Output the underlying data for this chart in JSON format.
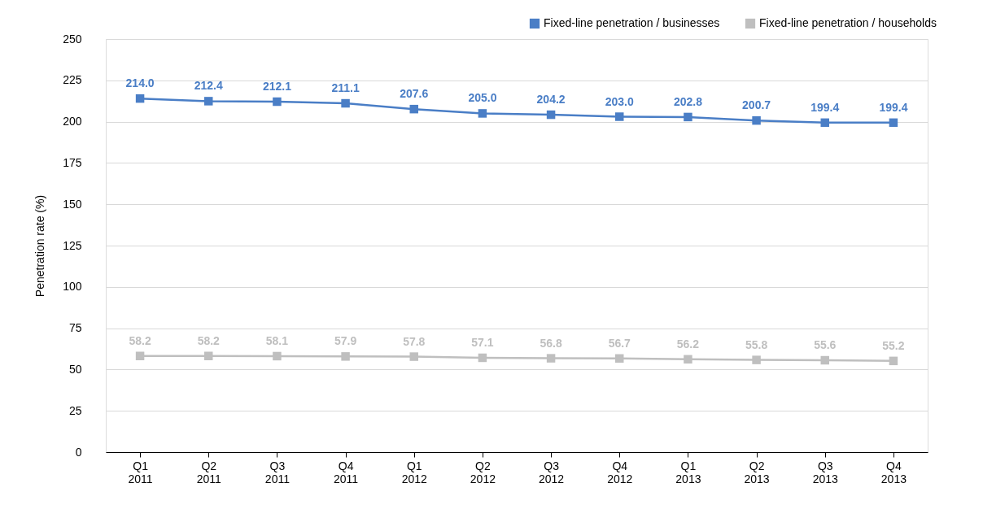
{
  "chart_data": {
    "type": "line",
    "ylabel": "Penetration rate (%)",
    "categories": [
      "Q1 2011",
      "Q2 2011",
      "Q3 2011",
      "Q4 2011",
      "Q1 2012",
      "Q2 2012",
      "Q3 2012",
      "Q4 2012",
      "Q1 2013",
      "Q2 2013",
      "Q3 2013",
      "Q4 2013"
    ],
    "series": [
      {
        "name": "Fixed-line penetration / businesses",
        "color": "#4a7ec6",
        "values": [
          214.0,
          212.4,
          212.1,
          211.1,
          207.6,
          205.0,
          204.2,
          203.0,
          202.8,
          200.7,
          199.4,
          199.4
        ],
        "value_labels": [
          "214.0",
          "212.4",
          "212.1",
          "211.1",
          "207.6",
          "205.0",
          "204.2",
          "203.0",
          "202.8",
          "200.7",
          "199.4",
          "199.4"
        ]
      },
      {
        "name": "Fixed-line penetration / households",
        "color": "#bfbfbf",
        "values": [
          58.2,
          58.2,
          58.1,
          57.9,
          57.8,
          57.1,
          56.8,
          56.7,
          56.2,
          55.8,
          55.6,
          55.2
        ],
        "value_labels": [
          "58.2",
          "58.2",
          "58.1",
          "57.9",
          "57.8",
          "57.1",
          "56.8",
          "56.7",
          "56.2",
          "55.8",
          "55.6",
          "55.2"
        ]
      }
    ],
    "ylim": [
      0,
      250
    ],
    "yticks": [
      0,
      25,
      50,
      75,
      100,
      125,
      150,
      175,
      200,
      225,
      250
    ],
    "grid": "y",
    "legend": "top right",
    "marker": "square",
    "line_style": "solid"
  }
}
